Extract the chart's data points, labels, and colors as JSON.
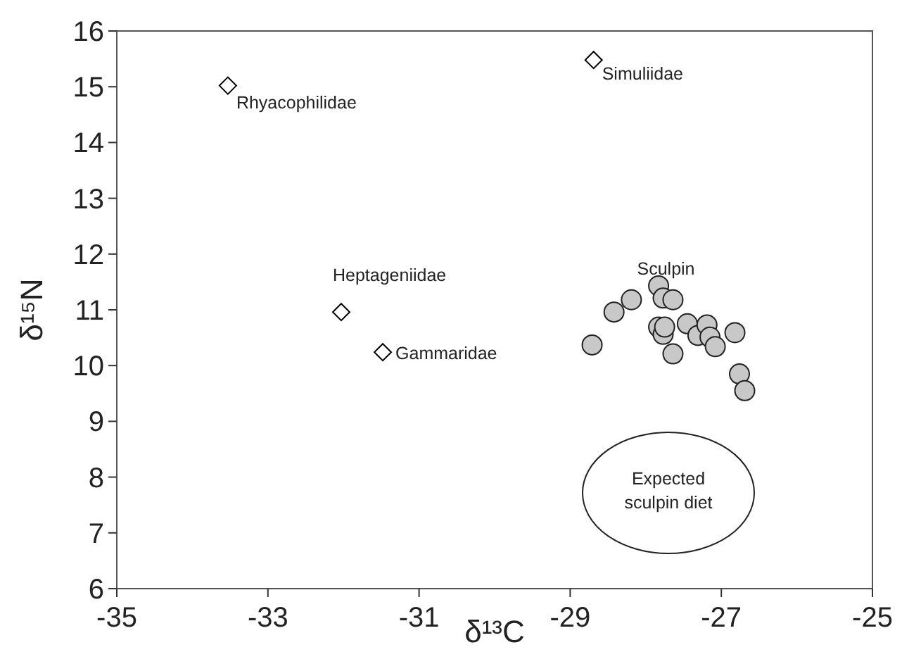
{
  "chart_data": {
    "type": "scatter",
    "xlabel": "δ¹³C",
    "ylabel": "δ¹⁵N",
    "xlim": [
      -35,
      -25
    ],
    "ylim": [
      6,
      16
    ],
    "xticks": [
      -35,
      -33,
      -31,
      -29,
      -27,
      -25
    ],
    "yticks": [
      6,
      7,
      8,
      9,
      10,
      11,
      12,
      13,
      14,
      15,
      16
    ],
    "grid": false,
    "marker": "diamond",
    "series": [
      {
        "name": "Rhyacophilidae",
        "color": "#ffffff",
        "x": [
          -33.53
        ],
        "values": [
          15.02
        ]
      },
      {
        "name": "Simuliidae",
        "color": "#ffffff",
        "x": [
          -28.69
        ],
        "values": [
          15.48
        ]
      },
      {
        "name": "Heptageniidae",
        "color": "#ffffff",
        "x": [
          -32.03
        ],
        "values": [
          10.96
        ]
      },
      {
        "name": "Gammaridae",
        "color": "#ffffff",
        "x": [
          -31.48
        ],
        "values": [
          10.24
        ]
      },
      {
        "name": "Sculpin",
        "color": "#c8c8c8",
        "marker": "circle",
        "x": [
          -28.71,
          -28.42,
          -28.19,
          -27.83,
          -27.77,
          -27.64,
          -27.83,
          -27.77,
          -27.75,
          -27.64,
          -27.45,
          -27.31,
          -27.19,
          -27.15,
          -27.08,
          -26.82,
          -26.76,
          -26.69
        ],
        "values": [
          10.37,
          10.96,
          11.18,
          11.43,
          11.21,
          11.18,
          10.69,
          10.56,
          10.69,
          10.21,
          10.75,
          10.54,
          10.73,
          10.51,
          10.34,
          10.59,
          9.85,
          9.55
        ]
      }
    ],
    "annotations": [
      "Expected sculpin diet"
    ]
  }
}
